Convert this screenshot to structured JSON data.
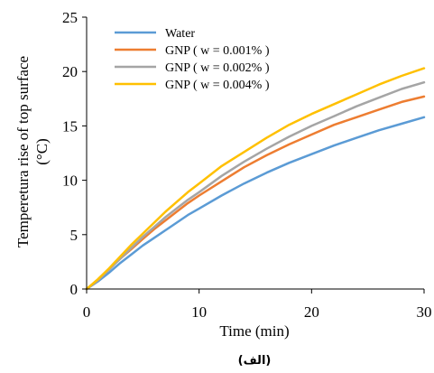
{
  "chart_data": {
    "type": "line",
    "xlabel": "Time (min)",
    "ylabel_line1": "Temperetura rise of top surface",
    "ylabel_line2": "(°C)",
    "xlim": [
      0,
      30
    ],
    "ylim": [
      0,
      25
    ],
    "xticks": [
      0,
      10,
      20,
      30
    ],
    "yticks": [
      0,
      5,
      10,
      15,
      20,
      25
    ],
    "grid": false,
    "legend_position": "top-left",
    "caption": "(الف)",
    "series": [
      {
        "name": "Water",
        "color": "#5b9bd5",
        "x": [
          0,
          1,
          2,
          3,
          4,
          5,
          6,
          7,
          8,
          9,
          10,
          12,
          14,
          16,
          18,
          20,
          22,
          24,
          26,
          28,
          30
        ],
        "y": [
          0,
          0.7,
          1.5,
          2.4,
          3.2,
          4.0,
          4.7,
          5.4,
          6.1,
          6.8,
          7.4,
          8.6,
          9.7,
          10.7,
          11.6,
          12.4,
          13.2,
          13.9,
          14.6,
          15.2,
          15.8
        ]
      },
      {
        "name": "GNP ( w = 0.001% )",
        "color": "#ed7d31",
        "x": [
          0,
          1,
          2,
          3,
          4,
          5,
          6,
          7,
          8,
          9,
          10,
          12,
          14,
          16,
          18,
          20,
          22,
          24,
          26,
          28,
          30
        ],
        "y": [
          0,
          0.8,
          1.8,
          2.8,
          3.7,
          4.6,
          5.5,
          6.3,
          7.1,
          7.9,
          8.6,
          9.9,
          11.2,
          12.3,
          13.3,
          14.2,
          15.1,
          15.8,
          16.5,
          17.2,
          17.7
        ]
      },
      {
        "name": "GNP ( w = 0.002% )",
        "color": "#a5a5a5",
        "x": [
          0,
          1,
          2,
          3,
          4,
          5,
          6,
          7,
          8,
          9,
          10,
          12,
          14,
          16,
          18,
          20,
          22,
          24,
          26,
          28,
          30
        ],
        "y": [
          0,
          0.8,
          1.8,
          2.8,
          3.8,
          4.8,
          5.7,
          6.6,
          7.4,
          8.2,
          8.9,
          10.4,
          11.7,
          12.9,
          14.0,
          15.0,
          15.9,
          16.8,
          17.6,
          18.4,
          19.0
        ]
      },
      {
        "name": "GNP ( w = 0.004% )",
        "color": "#ffc000",
        "x": [
          0,
          1,
          2,
          3,
          4,
          5,
          6,
          7,
          8,
          9,
          10,
          12,
          14,
          16,
          18,
          20,
          22,
          24,
          26,
          28,
          30
        ],
        "y": [
          0,
          0.9,
          1.9,
          3.0,
          4.1,
          5.1,
          6.1,
          7.1,
          8.0,
          8.9,
          9.7,
          11.3,
          12.6,
          13.9,
          15.1,
          16.1,
          17.0,
          17.9,
          18.8,
          19.6,
          20.3
        ]
      }
    ]
  }
}
